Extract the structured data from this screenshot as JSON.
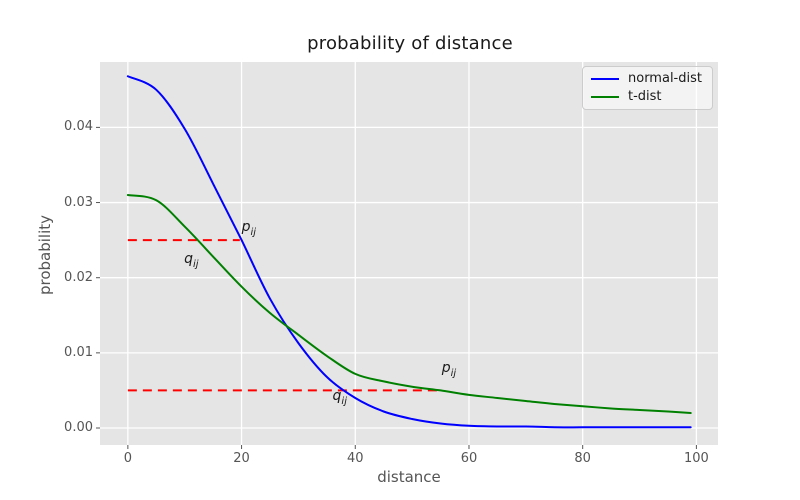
{
  "figure": {
    "background": "#ffffff"
  },
  "chart_data": {
    "type": "line",
    "title": "probability of distance",
    "xlabel": "distance",
    "ylabel": "probability",
    "xlim": [
      -4.9,
      103.8
    ],
    "ylim": [
      -0.00226,
      0.0487
    ],
    "xticks": [
      0,
      20,
      40,
      60,
      80,
      100
    ],
    "xtick_labels": [
      "0",
      "20",
      "40",
      "60",
      "80",
      "100"
    ],
    "yticks": [
      0,
      0.01,
      0.02,
      0.03,
      0.04
    ],
    "ytick_labels": [
      "0.00",
      "0.01",
      "0.02",
      "0.03",
      "0.04"
    ],
    "grid": true,
    "plot_bg_color": "#e5e5e5",
    "grid_color": "#ffffff",
    "tick_color": "#555555",
    "x": [
      0,
      5,
      10,
      15,
      20,
      25,
      30,
      35,
      40,
      45,
      50,
      55,
      60,
      65,
      70,
      75,
      80,
      85,
      90,
      95,
      99
    ],
    "series": [
      {
        "name": "normal-dist",
        "color": "#0000ff",
        "values": [
          0.0468,
          0.045,
          0.0398,
          0.0325,
          0.025,
          0.0172,
          0.0113,
          0.0068,
          0.004,
          0.0022,
          0.0012,
          0.0006,
          0.0003,
          0.0002,
          0.0002,
          0.0001,
          0.0001,
          0.0001,
          0.0001,
          0.0001,
          0.0001
        ]
      },
      {
        "name": "t-dist",
        "color": "#008000",
        "values": [
          0.031,
          0.0303,
          0.0268,
          0.0228,
          0.0188,
          0.0153,
          0.0124,
          0.0096,
          0.0072,
          0.0062,
          0.0055,
          0.005,
          0.0044,
          0.004,
          0.0036,
          0.0032,
          0.0029,
          0.0026,
          0.0024,
          0.0022,
          0.002
        ]
      }
    ],
    "legend": {
      "position": "upper right",
      "entries": [
        {
          "label": "normal-dist",
          "color": "#0000ff"
        },
        {
          "label": "t-dist",
          "color": "#008000"
        }
      ]
    },
    "annotations": {
      "dashed_lines": [
        {
          "y": 0.025,
          "x_start": 0,
          "x_end": 19.7,
          "color": "#ff0000",
          "style": "dashed"
        },
        {
          "y": 0.005,
          "x_start": 0,
          "x_end": 54.8,
          "color": "#ff0000",
          "style": "dashed"
        }
      ],
      "labels": [
        {
          "main": "p",
          "sub": "ij",
          "x": 20.0,
          "y": 0.0259
        },
        {
          "main": "q",
          "sub": "ij",
          "x": 9.9,
          "y": 0.0217
        },
        {
          "main": "p",
          "sub": "ij",
          "x": 55.2,
          "y": 0.0072
        },
        {
          "main": "q",
          "sub": "ij",
          "x": 36.0,
          "y": 0.0034
        }
      ]
    }
  }
}
